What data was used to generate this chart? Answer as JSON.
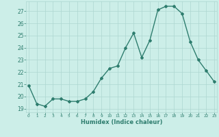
{
  "x": [
    0,
    1,
    2,
    3,
    4,
    5,
    6,
    7,
    8,
    9,
    10,
    11,
    12,
    13,
    14,
    15,
    16,
    17,
    18,
    19,
    20,
    21,
    22,
    23
  ],
  "y": [
    20.9,
    19.4,
    19.2,
    19.8,
    19.8,
    19.6,
    19.6,
    19.8,
    20.4,
    21.5,
    22.3,
    22.5,
    24.0,
    25.2,
    23.2,
    24.6,
    27.1,
    27.4,
    27.4,
    26.8,
    24.5,
    23.0,
    22.1,
    21.2
  ],
  "line_color": "#2e7d6e",
  "bg_color": "#cceee8",
  "grid_color": "#add6d0",
  "text_color": "#2e7d6e",
  "xlabel": "Humidex (Indice chaleur)",
  "ylim": [
    18.7,
    27.8
  ],
  "yticks": [
    19,
    20,
    21,
    22,
    23,
    24,
    25,
    26,
    27
  ],
  "xticks": [
    0,
    1,
    2,
    3,
    4,
    5,
    6,
    7,
    8,
    9,
    10,
    11,
    12,
    13,
    14,
    15,
    16,
    17,
    18,
    19,
    20,
    21,
    22,
    23
  ],
  "xlim": [
    -0.3,
    23.3
  ],
  "marker": "D",
  "markersize": 2.0,
  "linewidth": 1.0
}
